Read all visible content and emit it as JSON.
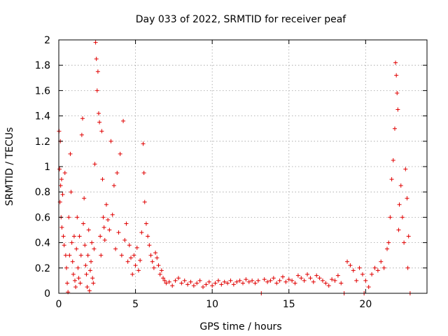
{
  "chart_data": {
    "type": "scatter",
    "title": "Day 033 of 2022, SRMTID for receiver peaf",
    "xlabel": "GPS time / hours",
    "ylabel": "SRMTID / TECUs",
    "xlim": [
      0,
      24
    ],
    "ylim": [
      0,
      2
    ],
    "xticks": [
      0,
      5,
      10,
      15,
      20
    ],
    "xtick_labels": [
      "0",
      "5",
      "10",
      "15",
      "20"
    ],
    "yticks": [
      0,
      0.2,
      0.4,
      0.6,
      0.8,
      1,
      1.2,
      1.4,
      1.6,
      1.8,
      2
    ],
    "ytick_labels": [
      "0",
      "0.2",
      "0.4",
      "0.6",
      "0.8",
      "1",
      "1.2",
      "1.4",
      "1.6",
      "1.8",
      "2"
    ],
    "grid": true,
    "marker": "+",
    "series": [
      {
        "name": "SRMTID",
        "color": "#e00000",
        "points": [
          [
            0.02,
            1.28
          ],
          [
            0.05,
            0.98
          ],
          [
            0.08,
            0.72
          ],
          [
            0.1,
            1.2
          ],
          [
            0.12,
            0.85
          ],
          [
            0.15,
            0.6
          ],
          [
            0.18,
            0.9
          ],
          [
            0.2,
            0.52
          ],
          [
            0.25,
            0.78
          ],
          [
            0.3,
            0.45
          ],
          [
            0.35,
            0.38
          ],
          [
            0.4,
            0.95
          ],
          [
            0.45,
            0.3
          ],
          [
            0.5,
            0.2
          ],
          [
            0.55,
            0.08
          ],
          [
            0.6,
            0.01
          ],
          [
            0.65,
            0.6
          ],
          [
            0.7,
            0.3
          ],
          [
            0.75,
            1.1
          ],
          [
            0.8,
            0.8
          ],
          [
            0.85,
            0.4
          ],
          [
            0.9,
            0.25
          ],
          [
            0.95,
            0.15
          ],
          [
            1.0,
            0.45
          ],
          [
            1.05,
            0.1
          ],
          [
            1.1,
            0.05
          ],
          [
            1.15,
            0.35
          ],
          [
            1.2,
            0.6
          ],
          [
            1.25,
            0.2
          ],
          [
            1.3,
            0.12
          ],
          [
            1.35,
            0.45
          ],
          [
            1.4,
            0.08
          ],
          [
            1.45,
            0.3
          ],
          [
            1.5,
            1.25
          ],
          [
            1.55,
            1.38
          ],
          [
            1.6,
            0.55
          ],
          [
            1.65,
            0.75
          ],
          [
            1.7,
            0.38
          ],
          [
            1.75,
            0.22
          ],
          [
            1.8,
            0.15
          ],
          [
            1.85,
            0.05
          ],
          [
            1.9,
            0.3
          ],
          [
            1.95,
            0.5
          ],
          [
            2.0,
            0.02
          ],
          [
            2.05,
            0.18
          ],
          [
            2.1,
            0.25
          ],
          [
            2.15,
            0.4
          ],
          [
            2.2,
            0.12
          ],
          [
            2.25,
            0.08
          ],
          [
            2.3,
            0.35
          ],
          [
            2.35,
            1.02
          ],
          [
            2.4,
            1.98
          ],
          [
            2.45,
            1.85
          ],
          [
            2.5,
            1.6
          ],
          [
            2.55,
            1.75
          ],
          [
            2.6,
            1.42
          ],
          [
            2.65,
            1.35
          ],
          [
            2.7,
            0.45
          ],
          [
            2.75,
            0.3
          ],
          [
            2.8,
            1.28
          ],
          [
            2.85,
            0.9
          ],
          [
            2.9,
            0.6
          ],
          [
            2.95,
            0.52
          ],
          [
            3.0,
            0.42
          ],
          [
            3.1,
            0.7
          ],
          [
            3.2,
            0.58
          ],
          [
            3.3,
            0.5
          ],
          [
            3.4,
            1.2
          ],
          [
            3.5,
            0.62
          ],
          [
            3.6,
            0.85
          ],
          [
            3.7,
            0.35
          ],
          [
            3.8,
            0.95
          ],
          [
            3.9,
            0.48
          ],
          [
            4.0,
            1.1
          ],
          [
            4.1,
            0.3
          ],
          [
            4.2,
            1.36
          ],
          [
            4.3,
            0.42
          ],
          [
            4.4,
            0.55
          ],
          [
            4.5,
            0.25
          ],
          [
            4.6,
            0.38
          ],
          [
            4.7,
            0.28
          ],
          [
            4.8,
            0.15
          ],
          [
            4.9,
            0.3
          ],
          [
            5.0,
            0.22
          ],
          [
            5.1,
            0.36
          ],
          [
            5.2,
            0.18
          ],
          [
            5.3,
            0.26
          ],
          [
            5.4,
            0.48
          ],
          [
            5.5,
            1.18
          ],
          [
            5.55,
            0.95
          ],
          [
            5.6,
            0.72
          ],
          [
            5.7,
            0.55
          ],
          [
            5.8,
            0.45
          ],
          [
            5.9,
            0.38
          ],
          [
            6.0,
            0.3
          ],
          [
            6.1,
            0.25
          ],
          [
            6.2,
            0.2
          ],
          [
            6.3,
            0.32
          ],
          [
            6.4,
            0.28
          ],
          [
            6.5,
            0.22
          ],
          [
            6.6,
            0.15
          ],
          [
            6.7,
            0.18
          ],
          [
            6.8,
            0.12
          ],
          [
            6.9,
            0.1
          ],
          [
            7.0,
            0.08
          ],
          [
            7.2,
            0.09
          ],
          [
            7.4,
            0.06
          ],
          [
            7.6,
            0.1
          ],
          [
            7.8,
            0.12
          ],
          [
            8.0,
            0.08
          ],
          [
            8.2,
            0.1
          ],
          [
            8.4,
            0.07
          ],
          [
            8.6,
            0.09
          ],
          [
            8.8,
            0.06
          ],
          [
            9.0,
            0.08
          ],
          [
            9.2,
            0.1
          ],
          [
            9.4,
            0.05
          ],
          [
            9.6,
            0.07
          ],
          [
            9.8,
            0.09
          ],
          [
            10.0,
            0.06
          ],
          [
            10.2,
            0.08
          ],
          [
            10.4,
            0.1
          ],
          [
            10.6,
            0.07
          ],
          [
            10.8,
            0.09
          ],
          [
            11.0,
            0.08
          ],
          [
            11.2,
            0.1
          ],
          [
            11.4,
            0.07
          ],
          [
            11.6,
            0.09
          ],
          [
            11.8,
            0.1
          ],
          [
            12.0,
            0.08
          ],
          [
            12.2,
            0.11
          ],
          [
            12.4,
            0.09
          ],
          [
            12.6,
            0.1
          ],
          [
            12.8,
            0.08
          ],
          [
            13.0,
            0.1
          ],
          [
            13.2,
            0.0
          ],
          [
            13.4,
            0.11
          ],
          [
            13.6,
            0.09
          ],
          [
            13.8,
            0.1
          ],
          [
            14.0,
            0.12
          ],
          [
            14.2,
            0.08
          ],
          [
            14.4,
            0.1
          ],
          [
            14.6,
            0.13
          ],
          [
            14.8,
            0.09
          ],
          [
            15.0,
            0.11
          ],
          [
            15.2,
            0.1
          ],
          [
            15.4,
            0.08
          ],
          [
            15.6,
            0.14
          ],
          [
            15.8,
            0.12
          ],
          [
            16.0,
            0.1
          ],
          [
            16.2,
            0.15
          ],
          [
            16.4,
            0.12
          ],
          [
            16.6,
            0.09
          ],
          [
            16.8,
            0.14
          ],
          [
            17.0,
            0.12
          ],
          [
            17.2,
            0.1
          ],
          [
            17.4,
            0.08
          ],
          [
            17.6,
            0.06
          ],
          [
            17.8,
            0.11
          ],
          [
            18.0,
            0.1
          ],
          [
            18.2,
            0.14
          ],
          [
            18.4,
            0.08
          ],
          [
            18.6,
            0.0
          ],
          [
            18.8,
            0.25
          ],
          [
            19.0,
            0.22
          ],
          [
            19.2,
            0.18
          ],
          [
            19.4,
            0.1
          ],
          [
            19.6,
            0.2
          ],
          [
            19.8,
            0.15
          ],
          [
            19.9,
            0.0
          ],
          [
            20.0,
            0.1
          ],
          [
            20.2,
            0.05
          ],
          [
            20.4,
            0.15
          ],
          [
            20.6,
            0.2
          ],
          [
            20.8,
            0.18
          ],
          [
            21.0,
            0.25
          ],
          [
            21.2,
            0.2
          ],
          [
            21.4,
            0.35
          ],
          [
            21.5,
            0.4
          ],
          [
            21.6,
            0.6
          ],
          [
            21.7,
            0.9
          ],
          [
            21.8,
            1.05
          ],
          [
            21.9,
            1.3
          ],
          [
            21.95,
            1.82
          ],
          [
            22.0,
            1.72
          ],
          [
            22.05,
            1.58
          ],
          [
            22.1,
            1.45
          ],
          [
            22.15,
            0.5
          ],
          [
            22.2,
            0.7
          ],
          [
            22.3,
            0.85
          ],
          [
            22.4,
            0.6
          ],
          [
            22.5,
            0.4
          ],
          [
            22.6,
            0.98
          ],
          [
            22.7,
            0.75
          ],
          [
            22.75,
            0.2
          ],
          [
            22.8,
            0.45
          ],
          [
            22.9,
            0.0
          ]
        ]
      }
    ]
  }
}
